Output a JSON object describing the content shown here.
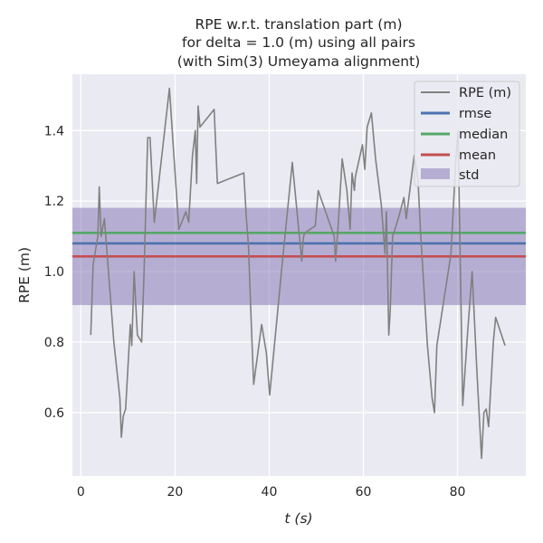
{
  "chart_data": {
    "type": "line",
    "title_lines": [
      "RPE w.r.t. translation part (m)",
      "for delta = 1.0 (m) using all pairs",
      "(with Sim(3) Umeyama alignment)"
    ],
    "xlabel": "t (s)",
    "ylabel": "RPE (m)",
    "xlim": [
      -1.8,
      94.5
    ],
    "ylim": [
      0.42,
      1.56
    ],
    "xticks": [
      0,
      20,
      40,
      60,
      80
    ],
    "yticks": [
      0.6,
      0.8,
      1.0,
      1.2,
      1.4
    ],
    "xtick_labels": [
      "0",
      "20",
      "40",
      "60",
      "80"
    ],
    "ytick_labels": [
      "0.6",
      "0.8",
      "1.0",
      "1.2",
      "1.4"
    ],
    "grid": true,
    "legend_position": "top-right",
    "legend": [
      "RPE (m)",
      "rmse",
      "median",
      "mean",
      "std"
    ],
    "series": [
      {
        "name": "RPE (m)",
        "color": "#808080",
        "x": [
          2.1,
          2.6,
          3.6,
          3.9,
          4.3,
          5.0,
          7.0,
          8.3,
          8.6,
          9.0,
          9.5,
          10.5,
          10.8,
          11.3,
          12.0,
          12.9,
          13.4,
          14.2,
          14.7,
          15.6,
          18.8,
          20.8,
          22.3,
          22.9,
          23.7,
          24.3,
          24.6,
          24.9,
          25.3,
          28.3,
          29.0,
          34.6,
          35.1,
          35.6,
          36.2,
          36.7,
          38.4,
          39.4,
          40.1,
          42.6,
          44.9,
          46.9,
          47.3,
          47.6,
          49.8,
          50.4,
          53.8,
          54.1,
          54.6,
          55.5,
          56.5,
          57.2,
          57.6,
          58.1,
          58.3,
          59.8,
          60.3,
          60.8,
          61.7,
          62.6,
          63.8,
          64.6,
          64.9,
          65.4,
          65.7,
          66.2,
          66.5,
          67.6,
          68.6,
          69.1,
          70.8,
          71.6,
          72.1,
          73.6,
          74.6,
          75.1,
          75.6,
          78.6,
          79.6,
          80.1,
          81.1,
          82.1,
          83.1,
          84.1,
          85.1,
          85.6,
          86.1,
          86.6,
          87.1,
          87.6,
          88.1,
          90.1
        ],
        "y": [
          0.82,
          1.02,
          1.1,
          1.24,
          1.1,
          1.15,
          0.8,
          0.64,
          0.53,
          0.59,
          0.61,
          0.85,
          0.79,
          1.0,
          0.82,
          0.8,
          0.99,
          1.38,
          1.38,
          1.14,
          1.52,
          1.12,
          1.17,
          1.14,
          1.33,
          1.4,
          1.25,
          1.47,
          1.41,
          1.46,
          1.25,
          1.28,
          1.16,
          1.07,
          0.85,
          0.68,
          0.85,
          0.77,
          0.65,
          1.0,
          1.31,
          1.03,
          1.1,
          1.11,
          1.13,
          1.23,
          1.1,
          1.03,
          1.12,
          1.32,
          1.23,
          1.12,
          1.28,
          1.23,
          1.27,
          1.36,
          1.29,
          1.41,
          1.45,
          1.32,
          1.19,
          1.05,
          1.17,
          0.82,
          0.89,
          1.1,
          1.11,
          1.16,
          1.21,
          1.15,
          1.33,
          1.26,
          1.12,
          0.79,
          0.64,
          0.6,
          0.79,
          1.05,
          1.31,
          1.4,
          0.62,
          0.82,
          1.0,
          0.72,
          0.47,
          0.6,
          0.61,
          0.56,
          0.68,
          0.8,
          0.87,
          0.79
        ]
      },
      {
        "name": "rmse",
        "color": "#4c72b0",
        "value": 1.08
      },
      {
        "name": "median",
        "color": "#55a868",
        "value": 1.11
      },
      {
        "name": "mean",
        "color": "#c44e52",
        "value": 1.043
      },
      {
        "name": "std",
        "color": "#8172b2",
        "low": 0.905,
        "high": 1.181
      }
    ]
  },
  "colors": {
    "axes_bg": "#eaeaf2",
    "grid": "#ffffff",
    "text": "#262626"
  }
}
